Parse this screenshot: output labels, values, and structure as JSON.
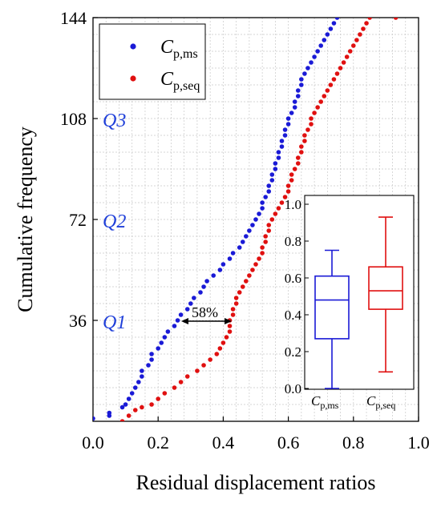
{
  "chart_data": [
    {
      "type": "scatter",
      "title": "",
      "xlabel": "Residual displacement ratios",
      "ylabel": "Cumulative frequency",
      "xlim": [
        0.0,
        1.0
      ],
      "ylim": [
        0,
        144
      ],
      "xticks": [
        "0.0",
        "0.2",
        "0.4",
        "0.6",
        "0.8",
        "1.0"
      ],
      "yticks": [
        "36",
        "72",
        "108",
        "144"
      ],
      "grid": true,
      "legend_position": "top-left",
      "quartile_labels": [
        "Q3",
        "Q2",
        "Q1"
      ],
      "annotation": "58%",
      "series": [
        {
          "name_main": "C",
          "name_sub": "p,ms",
          "color": "#1a1ad6",
          "points": [
            [
              0.0,
              1
            ],
            [
              0.05,
              2
            ],
            [
              0.05,
              3
            ],
            [
              0.09,
              5
            ],
            [
              0.1,
              6
            ],
            [
              0.11,
              8
            ],
            [
              0.12,
              10
            ],
            [
              0.13,
              12
            ],
            [
              0.14,
              14
            ],
            [
              0.15,
              16
            ],
            [
              0.15,
              18
            ],
            [
              0.17,
              20
            ],
            [
              0.18,
              22
            ],
            [
              0.18,
              24
            ],
            [
              0.2,
              26
            ],
            [
              0.21,
              28
            ],
            [
              0.22,
              30
            ],
            [
              0.23,
              32
            ],
            [
              0.25,
              34
            ],
            [
              0.26,
              36
            ],
            [
              0.27,
              38
            ],
            [
              0.29,
              40
            ],
            [
              0.3,
              42
            ],
            [
              0.31,
              44
            ],
            [
              0.33,
              46
            ],
            [
              0.34,
              48
            ],
            [
              0.35,
              50
            ],
            [
              0.37,
              52
            ],
            [
              0.39,
              54
            ],
            [
              0.4,
              56
            ],
            [
              0.42,
              58
            ],
            [
              0.43,
              60
            ],
            [
              0.45,
              62
            ],
            [
              0.46,
              64
            ],
            [
              0.47,
              66
            ],
            [
              0.48,
              68
            ],
            [
              0.49,
              70
            ],
            [
              0.5,
              72
            ],
            [
              0.51,
              74
            ],
            [
              0.52,
              76
            ],
            [
              0.52,
              78
            ],
            [
              0.53,
              80
            ],
            [
              0.54,
              82
            ],
            [
              0.54,
              84
            ],
            [
              0.55,
              86
            ],
            [
              0.55,
              88
            ],
            [
              0.56,
              90
            ],
            [
              0.56,
              92
            ],
            [
              0.57,
              94
            ],
            [
              0.57,
              96
            ],
            [
              0.58,
              98
            ],
            [
              0.58,
              100
            ],
            [
              0.59,
              102
            ],
            [
              0.59,
              104
            ],
            [
              0.6,
              106
            ],
            [
              0.6,
              108
            ],
            [
              0.61,
              110
            ],
            [
              0.62,
              112
            ],
            [
              0.62,
              114
            ],
            [
              0.63,
              116
            ],
            [
              0.63,
              118
            ],
            [
              0.64,
              120
            ],
            [
              0.64,
              122
            ],
            [
              0.65,
              124
            ],
            [
              0.66,
              126
            ],
            [
              0.67,
              128
            ],
            [
              0.68,
              130
            ],
            [
              0.69,
              132
            ],
            [
              0.7,
              134
            ],
            [
              0.71,
              136
            ],
            [
              0.72,
              138
            ],
            [
              0.73,
              140
            ],
            [
              0.74,
              142
            ],
            [
              0.75,
              144
            ]
          ]
        },
        {
          "name_main": "C",
          "name_sub": "p,seq",
          "color": "#e01010",
          "points": [
            [
              0.09,
              0
            ],
            [
              0.11,
              2
            ],
            [
              0.13,
              4
            ],
            [
              0.15,
              5
            ],
            [
              0.18,
              6
            ],
            [
              0.2,
              8
            ],
            [
              0.22,
              10
            ],
            [
              0.25,
              12
            ],
            [
              0.27,
              14
            ],
            [
              0.29,
              16
            ],
            [
              0.32,
              18
            ],
            [
              0.34,
              20
            ],
            [
              0.36,
              22
            ],
            [
              0.38,
              24
            ],
            [
              0.39,
              26
            ],
            [
              0.4,
              28
            ],
            [
              0.41,
              30
            ],
            [
              0.42,
              32
            ],
            [
              0.42,
              34
            ],
            [
              0.42,
              36
            ],
            [
              0.43,
              38
            ],
            [
              0.43,
              40
            ],
            [
              0.44,
              42
            ],
            [
              0.44,
              44
            ],
            [
              0.45,
              46
            ],
            [
              0.46,
              48
            ],
            [
              0.47,
              50
            ],
            [
              0.48,
              52
            ],
            [
              0.49,
              54
            ],
            [
              0.5,
              56
            ],
            [
              0.51,
              58
            ],
            [
              0.52,
              60
            ],
            [
              0.52,
              62
            ],
            [
              0.53,
              64
            ],
            [
              0.53,
              66
            ],
            [
              0.54,
              68
            ],
            [
              0.54,
              70
            ],
            [
              0.55,
              72
            ],
            [
              0.56,
              74
            ],
            [
              0.57,
              76
            ],
            [
              0.58,
              78
            ],
            [
              0.59,
              80
            ],
            [
              0.6,
              82
            ],
            [
              0.6,
              84
            ],
            [
              0.61,
              86
            ],
            [
              0.61,
              88
            ],
            [
              0.62,
              90
            ],
            [
              0.63,
              92
            ],
            [
              0.63,
              94
            ],
            [
              0.64,
              96
            ],
            [
              0.64,
              98
            ],
            [
              0.65,
              100
            ],
            [
              0.65,
              102
            ],
            [
              0.66,
              104
            ],
            [
              0.67,
              106
            ],
            [
              0.67,
              108
            ],
            [
              0.68,
              110
            ],
            [
              0.69,
              112
            ],
            [
              0.7,
              114
            ],
            [
              0.71,
              116
            ],
            [
              0.72,
              118
            ],
            [
              0.73,
              120
            ],
            [
              0.74,
              122
            ],
            [
              0.75,
              124
            ],
            [
              0.76,
              126
            ],
            [
              0.77,
              128
            ],
            [
              0.78,
              130
            ],
            [
              0.79,
              132
            ],
            [
              0.8,
              134
            ],
            [
              0.81,
              136
            ],
            [
              0.82,
              138
            ],
            [
              0.83,
              140
            ],
            [
              0.84,
              142
            ],
            [
              0.85,
              144
            ],
            [
              0.93,
              144
            ]
          ]
        }
      ]
    },
    {
      "type": "box",
      "title": "",
      "ylim": [
        0.0,
        1.0
      ],
      "yticks": [
        "0.0",
        "0.2",
        "0.4",
        "0.6",
        "0.8",
        "1.0"
      ],
      "categories": [
        {
          "main": "C",
          "sub": "p,ms",
          "color": "#1a1ad6",
          "min": 0.0,
          "q1": 0.27,
          "median": 0.48,
          "q3": 0.61,
          "max": 0.75
        },
        {
          "main": "C",
          "sub": "p,seq",
          "color": "#e01010",
          "min": 0.09,
          "q1": 0.43,
          "median": 0.53,
          "q3": 0.66,
          "max": 0.93
        }
      ]
    }
  ]
}
